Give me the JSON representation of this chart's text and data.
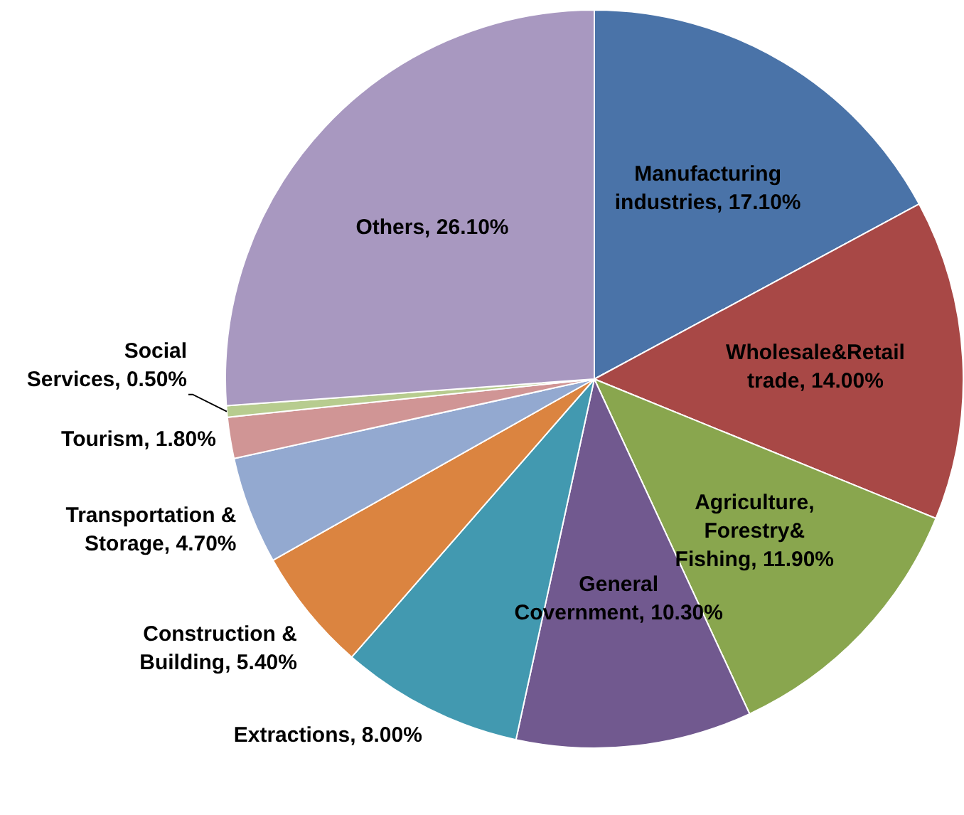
{
  "chart_data": {
    "type": "pie",
    "categories": [
      "Manufacturing industries",
      "Wholesale&Retail trade",
      "Agriculture, Forestry& Fishing",
      "General Covernment",
      "Extractions",
      "Construction & Building",
      "Transportation & Storage",
      "Tourism",
      "Social Services",
      "Others"
    ],
    "values": [
      17.1,
      14.0,
      11.9,
      10.3,
      8.0,
      5.4,
      4.7,
      1.8,
      0.5,
      26.1
    ],
    "value_labels": [
      "17.10%",
      "14.00%",
      "11.90%",
      "10.30%",
      "8.00%",
      "5.40%",
      "4.70%",
      "1.80%",
      "0.50%",
      "26.10%"
    ],
    "colors": [
      "#4a73a8",
      "#a84846",
      "#89a64e",
      "#71598f",
      "#4299b0",
      "#db8440",
      "#93a9d0",
      "#d09595",
      "#b7cc8f",
      "#a898c0"
    ],
    "legend": false
  }
}
